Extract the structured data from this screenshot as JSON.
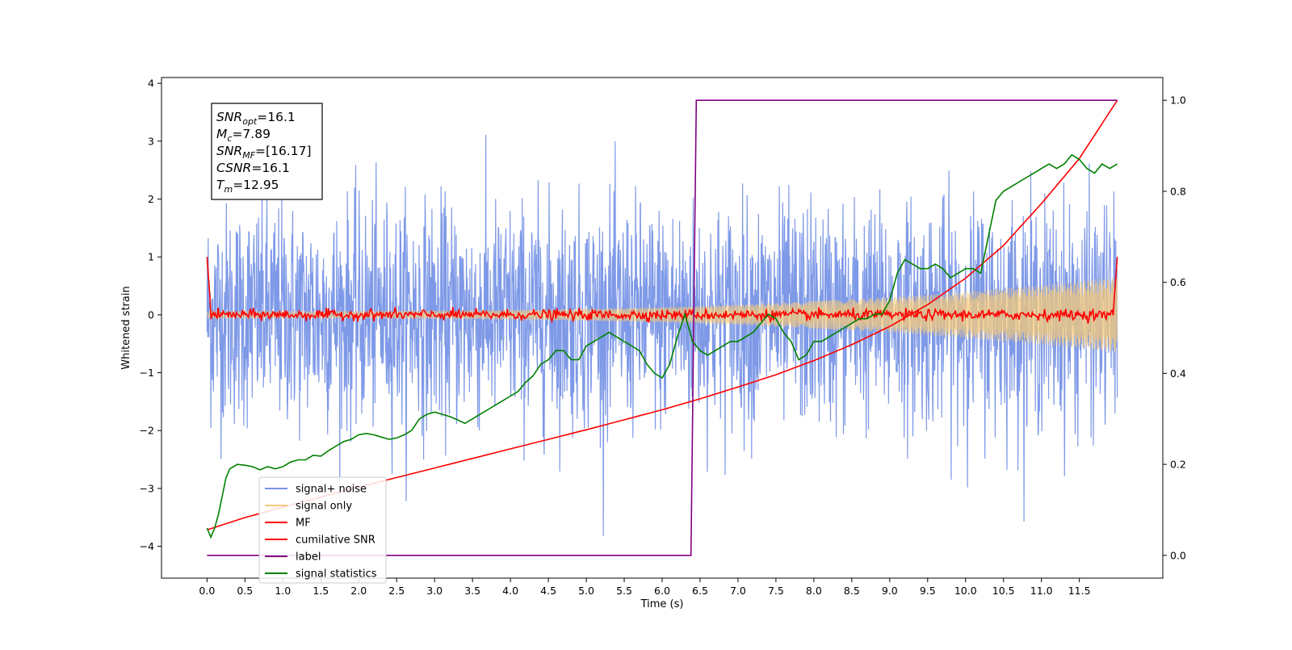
{
  "chart_data": {
    "type": "line",
    "xlabel": "Time (s)",
    "ylabel_left": "Whitened strain",
    "ylabel_right": "",
    "xlim": [
      -0.6,
      12.6
    ],
    "ylim_left": [
      -4.55,
      4.1
    ],
    "ylim_right": [
      -0.05,
      1.05
    ],
    "x_ticks": [
      0.0,
      0.5,
      1.0,
      1.5,
      2.0,
      2.5,
      3.0,
      3.5,
      4.0,
      4.5,
      5.0,
      5.5,
      6.0,
      6.5,
      7.0,
      7.5,
      8.0,
      8.5,
      9.0,
      9.5,
      10.0,
      10.5,
      11.0,
      11.5
    ],
    "x_tick_labels": [
      "0.0",
      "0.5",
      "1.0",
      "1.5",
      "2.0",
      "2.5",
      "3.0",
      "3.5",
      "4.0",
      "4.5",
      "5.0",
      "5.5",
      "6.0",
      "6.5",
      "7.0",
      "7.5",
      "8.0",
      "8.5",
      "9.0",
      "9.5",
      "10.0",
      "10.5",
      "11.0",
      "11.5"
    ],
    "y_left_ticks": [
      -4,
      -3,
      -2,
      -1,
      0,
      1,
      2,
      3,
      4
    ],
    "y_left_tick_labels": [
      "−4",
      "−3",
      "−2",
      "−1",
      "0",
      "1",
      "2",
      "3",
      "4"
    ],
    "y_right_ticks": [
      0.0,
      0.2,
      0.4,
      0.6,
      0.8,
      1.0
    ],
    "y_right_tick_labels": [
      "0.0",
      "0.2",
      "0.4",
      "0.6",
      "0.8",
      "1.0"
    ],
    "grid": false,
    "legend_position": "lower-left",
    "series": [
      {
        "name": "signal+ noise",
        "color": "#7793e6",
        "axis": "left",
        "kind": "noise",
        "sigma": 0.95,
        "x_range": [
          0,
          12.0
        ]
      },
      {
        "name": "signal only",
        "color": "#f5c97a",
        "axis": "left",
        "kind": "chirp",
        "amplitude_start": 0.06,
        "amplitude_end": 0.65,
        "x_range": [
          0,
          12.0
        ]
      },
      {
        "name": "MF",
        "color": "#ff0000",
        "axis": "left",
        "kind": "mf",
        "edge_value": 1.0,
        "x_range": [
          0,
          12.0
        ]
      },
      {
        "name": "cumilative SNR",
        "color": "#ff0000",
        "axis": "right",
        "x": [
          0,
          0.5,
          1,
          1.5,
          2,
          2.5,
          3,
          3.5,
          4,
          4.5,
          5,
          5.5,
          6,
          6.5,
          7,
          7.5,
          8,
          8.5,
          9,
          9.5,
          10,
          10.5,
          11,
          11.5,
          12.0
        ],
        "values": [
          0.056,
          0.083,
          0.106,
          0.128,
          0.15,
          0.171,
          0.192,
          0.213,
          0.234,
          0.255,
          0.276,
          0.298,
          0.32,
          0.344,
          0.37,
          0.397,
          0.428,
          0.463,
          0.503,
          0.551,
          0.609,
          0.681,
          0.773,
          0.872,
          1.0
        ]
      },
      {
        "name": "label",
        "color": "#800080",
        "axis": "right",
        "x": [
          0,
          6.38,
          6.45,
          12.0
        ],
        "values": [
          0.0,
          0.0,
          1.0,
          1.0
        ]
      },
      {
        "name": "signal statistics",
        "color": "#008000",
        "axis": "right",
        "x": [
          0,
          0.05,
          0.1,
          0.15,
          0.2,
          0.25,
          0.3,
          0.4,
          0.5,
          0.6,
          0.7,
          0.8,
          0.9,
          1.0,
          1.1,
          1.2,
          1.3,
          1.4,
          1.5,
          1.6,
          1.7,
          1.8,
          1.9,
          2.0,
          2.1,
          2.2,
          2.3,
          2.4,
          2.5,
          2.6,
          2.7,
          2.8,
          2.9,
          3.0,
          3.1,
          3.2,
          3.3,
          3.4,
          3.5,
          3.6,
          3.7,
          3.8,
          3.9,
          4.0,
          4.1,
          4.2,
          4.3,
          4.4,
          4.5,
          4.6,
          4.7,
          4.8,
          4.9,
          5.0,
          5.1,
          5.2,
          5.3,
          5.4,
          5.5,
          5.6,
          5.7,
          5.8,
          5.9,
          6.0,
          6.1,
          6.2,
          6.3,
          6.4,
          6.5,
          6.6,
          6.7,
          6.8,
          6.9,
          7.0,
          7.1,
          7.2,
          7.3,
          7.4,
          7.5,
          7.6,
          7.7,
          7.8,
          7.9,
          8.0,
          8.1,
          8.2,
          8.3,
          8.4,
          8.5,
          8.6,
          8.7,
          8.8,
          8.9,
          9.0,
          9.1,
          9.2,
          9.3,
          9.4,
          9.5,
          9.6,
          9.7,
          9.8,
          9.9,
          10.0,
          10.1,
          10.2,
          10.3,
          10.4,
          10.5,
          10.6,
          10.7,
          10.8,
          10.9,
          11.0,
          11.1,
          11.2,
          11.3,
          11.4,
          11.5,
          11.6,
          11.7,
          11.8,
          11.9,
          12.0
        ],
        "values": [
          0.06,
          0.04,
          0.06,
          0.09,
          0.13,
          0.17,
          0.19,
          0.2,
          0.198,
          0.195,
          0.188,
          0.195,
          0.19,
          0.195,
          0.205,
          0.21,
          0.21,
          0.22,
          0.218,
          0.23,
          0.24,
          0.25,
          0.255,
          0.265,
          0.268,
          0.265,
          0.26,
          0.255,
          0.258,
          0.265,
          0.275,
          0.3,
          0.31,
          0.315,
          0.31,
          0.305,
          0.298,
          0.29,
          0.3,
          0.31,
          0.32,
          0.33,
          0.34,
          0.35,
          0.36,
          0.38,
          0.395,
          0.42,
          0.43,
          0.45,
          0.45,
          0.43,
          0.43,
          0.46,
          0.47,
          0.48,
          0.49,
          0.48,
          0.47,
          0.46,
          0.45,
          0.42,
          0.4,
          0.39,
          0.42,
          0.48,
          0.53,
          0.47,
          0.45,
          0.44,
          0.45,
          0.46,
          0.47,
          0.47,
          0.48,
          0.49,
          0.51,
          0.53,
          0.52,
          0.49,
          0.47,
          0.43,
          0.44,
          0.47,
          0.47,
          0.48,
          0.49,
          0.5,
          0.51,
          0.52,
          0.52,
          0.53,
          0.53,
          0.56,
          0.62,
          0.65,
          0.64,
          0.63,
          0.63,
          0.64,
          0.63,
          0.61,
          0.62,
          0.63,
          0.63,
          0.62,
          0.7,
          0.78,
          0.8,
          0.81,
          0.82,
          0.83,
          0.84,
          0.85,
          0.86,
          0.85,
          0.86,
          0.88,
          0.87,
          0.85,
          0.84,
          0.86,
          0.85,
          0.86
        ]
      }
    ],
    "annotation": {
      "lines": [
        {
          "main": "SNR",
          "sub": "opt",
          "rest": "=16.1"
        },
        {
          "main": "M",
          "sub": "c",
          "rest": "=7.89"
        },
        {
          "main": "SNR",
          "sub": "MF",
          "rest": "=[16.17]"
        },
        {
          "main": "CSNR",
          "sub": "",
          "rest": "=16.1"
        },
        {
          "main": "T",
          "sub": "m",
          "rest": "=12.95"
        }
      ]
    }
  }
}
